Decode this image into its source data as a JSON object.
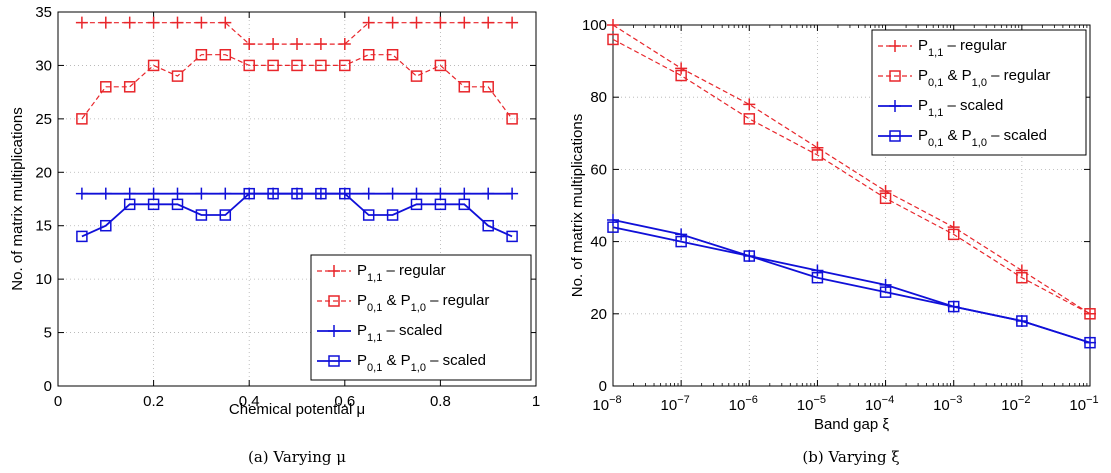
{
  "chart_data": [
    {
      "type": "line",
      "caption": "(a)  Varying μ",
      "xlabel": "Chemical potential μ",
      "ylabel": "No. of matrix multiplications",
      "xlim": [
        0,
        1
      ],
      "ylim": [
        0,
        35
      ],
      "xticks": [
        0,
        0.2,
        0.4,
        0.6,
        0.8,
        1
      ],
      "xtick_labels": [
        "0",
        "0.2",
        "0.4",
        "0.6",
        "0.8",
        "1"
      ],
      "yticks": [
        0,
        5,
        10,
        15,
        20,
        25,
        30,
        35
      ],
      "ytick_labels": [
        "0",
        "5",
        "10",
        "15",
        "20",
        "25",
        "30",
        "35"
      ],
      "x_scale": "linear",
      "grid": true,
      "legend_position": "bottom-right",
      "x": [
        0.05,
        0.1,
        0.15,
        0.2,
        0.25,
        0.3,
        0.35,
        0.4,
        0.45,
        0.5,
        0.55,
        0.6,
        0.65,
        0.7,
        0.75,
        0.8,
        0.85,
        0.9,
        0.95
      ],
      "series": [
        {
          "name": "P_{1,1} – regular",
          "color": "#e8262b",
          "dash": true,
          "marker": "plus",
          "values": [
            34,
            34,
            34,
            34,
            34,
            34,
            34,
            32,
            32,
            32,
            32,
            32,
            34,
            34,
            34,
            34,
            34,
            34,
            34
          ]
        },
        {
          "name": "P_{0,1} & P_{1,0} – regular",
          "color": "#e8262b",
          "dash": true,
          "marker": "square",
          "values": [
            25,
            28,
            28,
            30,
            29,
            31,
            31,
            30,
            30,
            30,
            30,
            30,
            31,
            31,
            29,
            30,
            28,
            28,
            25
          ]
        },
        {
          "name": "P_{1,1} – scaled",
          "color": "#1010d8",
          "dash": false,
          "marker": "plus",
          "values": [
            18,
            18,
            18,
            18,
            18,
            18,
            18,
            18,
            18,
            18,
            18,
            18,
            18,
            18,
            18,
            18,
            18,
            18,
            18
          ]
        },
        {
          "name": "P_{0,1} & P_{1,0} – scaled",
          "color": "#1010d8",
          "dash": false,
          "marker": "square",
          "values": [
            14,
            15,
            17,
            17,
            17,
            16,
            16,
            18,
            18,
            18,
            18,
            18,
            16,
            16,
            17,
            17,
            17,
            15,
            14
          ]
        }
      ]
    },
    {
      "type": "line",
      "caption": "(b)  Varying ξ",
      "xlabel": "Band gap ξ",
      "ylabel": "No. of matrix multiplications",
      "xlim": [
        1e-08,
        0.1
      ],
      "ylim": [
        0,
        100
      ],
      "x_scale": "log",
      "xticks": [
        1e-08,
        1e-07,
        1e-06,
        1e-05,
        0.0001,
        0.001,
        0.01,
        0.1
      ],
      "xtick_exponents": [
        "−8",
        "−7",
        "−6",
        "−5",
        "−4",
        "−3",
        "−2",
        "−1"
      ],
      "yticks": [
        0,
        20,
        40,
        60,
        80,
        100
      ],
      "ytick_labels": [
        "0",
        "20",
        "40",
        "60",
        "80",
        "100"
      ],
      "grid": true,
      "legend_position": "top-right",
      "x": [
        1e-08,
        1e-07,
        1e-06,
        1e-05,
        0.0001,
        0.001,
        0.01,
        0.1
      ],
      "series": [
        {
          "name": "P_{1,1} – regular",
          "color": "#e8262b",
          "dash": true,
          "marker": "plus",
          "values": [
            100,
            88,
            78,
            66,
            54,
            44,
            32,
            20
          ]
        },
        {
          "name": "P_{0,1} & P_{1,0} – regular",
          "color": "#e8262b",
          "dash": true,
          "marker": "square",
          "values": [
            96,
            86,
            74,
            64,
            52,
            42,
            30,
            20
          ]
        },
        {
          "name": "P_{1,1} – scaled",
          "color": "#1010d8",
          "dash": false,
          "marker": "plus",
          "values": [
            46,
            42,
            36,
            32,
            28,
            22,
            18,
            12
          ]
        },
        {
          "name": "P_{0,1} & P_{1,0} – scaled",
          "color": "#1010d8",
          "dash": false,
          "marker": "square",
          "values": [
            44,
            40,
            36,
            30,
            26,
            22,
            18,
            12
          ]
        }
      ]
    }
  ]
}
